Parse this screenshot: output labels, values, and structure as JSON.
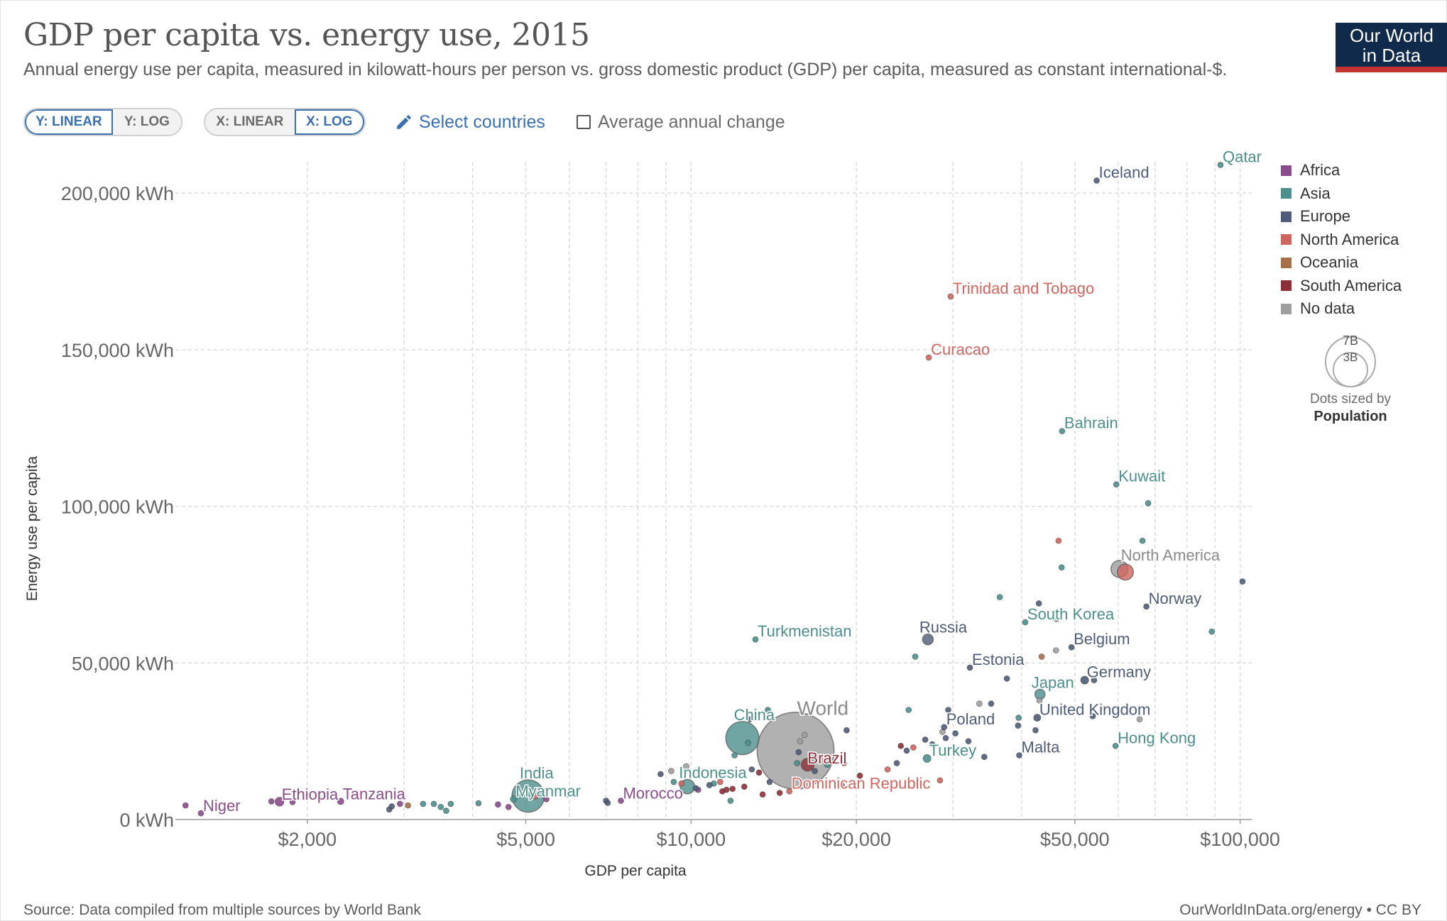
{
  "header": {
    "title": "GDP per capita vs. energy use, 2015",
    "subtitle": "Annual energy use per capita, measured in kilowatt-hours per person vs. gross domestic product (GDP) per capita, measured as constant international-$.",
    "logo_line1": "Our World",
    "logo_line2": "in Data"
  },
  "controls": {
    "y_linear": "Y: LINEAR",
    "y_log": "Y: LOG",
    "x_linear": "X: LINEAR",
    "x_log": "X: LOG",
    "select_countries": "Select countries",
    "average_annual_change": "Average annual change"
  },
  "legend": {
    "items": [
      {
        "label": "Africa",
        "color": "#8a4d8b"
      },
      {
        "label": "Asia",
        "color": "#4d8f8d"
      },
      {
        "label": "Europe",
        "color": "#4e5c77"
      },
      {
        "label": "North America",
        "color": "#d0655f"
      },
      {
        "label": "Oceania",
        "color": "#a7704b"
      },
      {
        "label": "South America",
        "color": "#8e2f38"
      },
      {
        "label": "No data",
        "color": "#9e9e9e"
      }
    ],
    "size_big": "7B",
    "size_small": "3B",
    "size_caption": "Dots sized by",
    "size_variable": "Population"
  },
  "footer": {
    "source": "Source: Data compiled from multiple sources by World Bank",
    "credit": "OurWorldInData.org/energy • CC BY"
  },
  "chart_data": {
    "type": "scatter",
    "title": "GDP per capita vs. energy use, 2015",
    "xlabel": "GDP per capita",
    "ylabel": "Energy use per capita",
    "x_scale": "log",
    "y_scale": "linear",
    "xlim": [
      1150,
      105000
    ],
    "ylim": [
      0,
      210000
    ],
    "x_ticks": [
      2000,
      5000,
      10000,
      20000,
      50000,
      100000
    ],
    "x_tick_labels": [
      "$2,000",
      "$5,000",
      "$10,000",
      "$20,000",
      "$50,000",
      "$100,000"
    ],
    "y_ticks": [
      0,
      50000,
      100000,
      150000,
      200000
    ],
    "y_tick_labels": [
      "0 kWh",
      "50,000 kWh",
      "100,000 kWh",
      "150,000 kWh",
      "200,000 kWh"
    ],
    "grid": true,
    "legend_position": "right",
    "points": [
      {
        "x": 1200,
        "y": 4500,
        "r": "Africa",
        "pop": 6
      },
      {
        "x": 1280,
        "y": 2000,
        "r": "Africa",
        "label": "Niger",
        "pop": 20
      },
      {
        "x": 1720,
        "y": 5800,
        "r": "Africa",
        "pop": 8
      },
      {
        "x": 1780,
        "y": 5700,
        "r": "Africa",
        "label": "Ethiopia",
        "pop": 100
      },
      {
        "x": 1880,
        "y": 5600,
        "r": "Africa",
        "pop": 8
      },
      {
        "x": 2300,
        "y": 5800,
        "r": "Africa",
        "label": "Tanzania",
        "pop": 53
      },
      {
        "x": 2820,
        "y": 3200,
        "r": "Europe",
        "pop": 8
      },
      {
        "x": 2850,
        "y": 4200,
        "r": "Europe",
        "pop": 5
      },
      {
        "x": 2950,
        "y": 5000,
        "r": "Africa",
        "pop": 12
      },
      {
        "x": 3050,
        "y": 4500,
        "r": "Oceania",
        "pop": 8
      },
      {
        "x": 3250,
        "y": 5000,
        "r": "Asia",
        "pop": 10
      },
      {
        "x": 3400,
        "y": 5000,
        "r": "Asia",
        "pop": 5
      },
      {
        "x": 3500,
        "y": 4000,
        "r": "Asia",
        "pop": 8
      },
      {
        "x": 3580,
        "y": 2800,
        "r": "Asia",
        "pop": 12
      },
      {
        "x": 3650,
        "y": 5000,
        "r": "Asia",
        "pop": 8
      },
      {
        "x": 4100,
        "y": 5200,
        "r": "Asia",
        "pop": 10
      },
      {
        "x": 4450,
        "y": 4800,
        "r": "Africa",
        "pop": 8
      },
      {
        "x": 4650,
        "y": 4000,
        "r": "Africa",
        "pop": 8
      },
      {
        "x": 4750,
        "y": 6500,
        "r": "Asia",
        "label": "Myanmar",
        "pop": 53
      },
      {
        "x": 5050,
        "y": 7500,
        "r": "Asia",
        "label": "India",
        "pop": 1310
      },
      {
        "x": 5200,
        "y": 7400,
        "r": "North America",
        "pop": 10
      },
      {
        "x": 5400,
        "y": 9000,
        "r": "Africa",
        "pop": 30
      },
      {
        "x": 5450,
        "y": 6500,
        "r": "Africa",
        "pop": 20
      },
      {
        "x": 5950,
        "y": 8000,
        "r": "No data",
        "pop": 5
      },
      {
        "x": 7000,
        "y": 6000,
        "r": "Europe",
        "pop": 8
      },
      {
        "x": 7050,
        "y": 5300,
        "r": "Europe",
        "pop": 8
      },
      {
        "x": 7450,
        "y": 6000,
        "r": "Africa",
        "label": "Morocco",
        "pop": 35
      },
      {
        "x": 8800,
        "y": 14500,
        "r": "Europe",
        "pop": 8
      },
      {
        "x": 9200,
        "y": 15500,
        "r": "No data",
        "pop": 6
      },
      {
        "x": 9300,
        "y": 12000,
        "r": "Asia",
        "pop": 8
      },
      {
        "x": 9600,
        "y": 11500,
        "r": "North America",
        "pop": 10
      },
      {
        "x": 9800,
        "y": 17000,
        "r": "No data",
        "pop": 6
      },
      {
        "x": 9850,
        "y": 10500,
        "r": "Asia",
        "label": "Indonesia",
        "pop": 260
      },
      {
        "x": 10200,
        "y": 10000,
        "r": "Europe",
        "pop": 8
      },
      {
        "x": 10300,
        "y": 9500,
        "r": "Africa",
        "pop": 10
      },
      {
        "x": 10800,
        "y": 11000,
        "r": "Europe",
        "pop": 6
      },
      {
        "x": 11000,
        "y": 11500,
        "r": "Asia",
        "pop": 8
      },
      {
        "x": 11300,
        "y": 12000,
        "r": "North America",
        "pop": 10
      },
      {
        "x": 11400,
        "y": 9000,
        "r": "South America",
        "pop": 10
      },
      {
        "x": 11600,
        "y": 9500,
        "r": "South America",
        "pop": 10
      },
      {
        "x": 11800,
        "y": 6000,
        "r": "Asia",
        "pop": 8
      },
      {
        "x": 11900,
        "y": 9800,
        "r": "South America",
        "pop": 8
      },
      {
        "x": 12000,
        "y": 20500,
        "r": "Asia",
        "pop": 8
      },
      {
        "x": 12400,
        "y": 26000,
        "r": "Asia",
        "label": "China",
        "pop": 1370
      },
      {
        "x": 12500,
        "y": 10500,
        "r": "South America",
        "pop": 8
      },
      {
        "x": 12700,
        "y": 24500,
        "r": "Asia",
        "pop": 10
      },
      {
        "x": 12800,
        "y": 32000,
        "r": "Europe",
        "pop": 8
      },
      {
        "x": 12900,
        "y": 16000,
        "r": "Europe",
        "pop": 10
      },
      {
        "x": 13100,
        "y": 57500,
        "r": "Asia",
        "label": "Turkmenistan",
        "pop": 6
      },
      {
        "x": 13300,
        "y": 15000,
        "r": "South America",
        "pop": 10
      },
      {
        "x": 13500,
        "y": 8000,
        "r": "South America",
        "pop": 8
      },
      {
        "x": 13800,
        "y": 35000,
        "r": "Asia",
        "pop": 8
      },
      {
        "x": 13900,
        "y": 12000,
        "r": "Europe",
        "pop": 8
      },
      {
        "x": 14500,
        "y": 8500,
        "r": "South America",
        "pop": 8
      },
      {
        "x": 15100,
        "y": 9000,
        "r": "North America",
        "label": "Dominican Republic",
        "pop": 10
      },
      {
        "x": 15500,
        "y": 22000,
        "r": "No data",
        "label": "World",
        "pop": 7400
      },
      {
        "x": 15600,
        "y": 18000,
        "r": "Asia",
        "pop": 8
      },
      {
        "x": 15700,
        "y": 21500,
        "r": "Europe",
        "pop": 8
      },
      {
        "x": 15800,
        "y": 25000,
        "r": "No data",
        "pop": 6
      },
      {
        "x": 16100,
        "y": 27000,
        "r": "No data",
        "pop": 6
      },
      {
        "x": 16300,
        "y": 17500,
        "r": "South America",
        "label": "Brazil",
        "pop": 205
      },
      {
        "x": 16600,
        "y": 19000,
        "r": "No data",
        "pop": 5
      },
      {
        "x": 16800,
        "y": 15500,
        "r": "Europe",
        "pop": 8
      },
      {
        "x": 17700,
        "y": 17500,
        "r": "Asia",
        "pop": 8
      },
      {
        "x": 18800,
        "y": 11000,
        "r": "South America",
        "pop": 8
      },
      {
        "x": 19000,
        "y": 18000,
        "r": "North America",
        "pop": 10
      },
      {
        "x": 19200,
        "y": 28500,
        "r": "Europe",
        "pop": 8
      },
      {
        "x": 20300,
        "y": 14000,
        "r": "South America",
        "pop": 8
      },
      {
        "x": 22800,
        "y": 16000,
        "r": "North America",
        "pop": 8
      },
      {
        "x": 23700,
        "y": 18000,
        "r": "Europe",
        "pop": 8
      },
      {
        "x": 24100,
        "y": 23500,
        "r": "South America",
        "pop": 8
      },
      {
        "x": 24700,
        "y": 22000,
        "r": "Europe",
        "pop": 8
      },
      {
        "x": 24900,
        "y": 35000,
        "r": "Asia",
        "pop": 8
      },
      {
        "x": 25400,
        "y": 23000,
        "r": "North America",
        "pop": 8
      },
      {
        "x": 25600,
        "y": 52000,
        "r": "Asia",
        "pop": 8
      },
      {
        "x": 26700,
        "y": 25500,
        "r": "Europe",
        "pop": 8
      },
      {
        "x": 26900,
        "y": 19500,
        "r": "Asia",
        "label": "Turkey",
        "pop": 78
      },
      {
        "x": 27000,
        "y": 57500,
        "r": "Europe",
        "label": "Russia",
        "pop": 144
      },
      {
        "x": 27100,
        "y": 147500,
        "r": "North America",
        "label": "Curacao",
        "pop": 5
      },
      {
        "x": 27500,
        "y": 24000,
        "r": "Europe",
        "pop": 6
      },
      {
        "x": 28400,
        "y": 12500,
        "r": "North America",
        "pop": 8
      },
      {
        "x": 28700,
        "y": 28000,
        "r": "No data",
        "pop": 38
      },
      {
        "x": 28900,
        "y": 29500,
        "r": "Europe",
        "label": "Poland",
        "pop": 8
      },
      {
        "x": 29100,
        "y": 26000,
        "r": "Europe",
        "pop": 8
      },
      {
        "x": 29400,
        "y": 35000,
        "r": "Europe",
        "pop": 5
      },
      {
        "x": 29700,
        "y": 167000,
        "r": "North America",
        "label": "Trinidad and Tobago",
        "pop": 5
      },
      {
        "x": 30300,
        "y": 27500,
        "r": "Europe",
        "pop": 8
      },
      {
        "x": 32000,
        "y": 25000,
        "r": "Europe",
        "pop": 8
      },
      {
        "x": 32200,
        "y": 48500,
        "r": "Europe",
        "label": "Estonia",
        "pop": 5
      },
      {
        "x": 33500,
        "y": 37000,
        "r": "No data",
        "pop": 6
      },
      {
        "x": 34200,
        "y": 20000,
        "r": "Europe",
        "pop": 8
      },
      {
        "x": 35200,
        "y": 37000,
        "r": "Europe",
        "pop": 8
      },
      {
        "x": 36500,
        "y": 71000,
        "r": "Asia",
        "pop": 8
      },
      {
        "x": 37600,
        "y": 45000,
        "r": "Europe",
        "pop": 8
      },
      {
        "x": 39400,
        "y": 30000,
        "r": "Europe",
        "pop": 8
      },
      {
        "x": 39500,
        "y": 32500,
        "r": "Asia",
        "pop": 8
      },
      {
        "x": 39600,
        "y": 20500,
        "r": "Europe",
        "label": "Malta",
        "pop": 6
      },
      {
        "x": 40600,
        "y": 63000,
        "r": "Asia",
        "label": "South Korea",
        "pop": 8
      },
      {
        "x": 42400,
        "y": 28500,
        "r": "Europe",
        "pop": 8
      },
      {
        "x": 43100,
        "y": 38000,
        "r": "No data",
        "pop": 6
      },
      {
        "x": 43200,
        "y": 40000,
        "r": "Asia",
        "label": "Japan",
        "pop": 127
      },
      {
        "x": 43500,
        "y": 52000,
        "r": "Oceania",
        "pop": 8
      },
      {
        "x": 43000,
        "y": 69000,
        "r": "Europe",
        "pop": 8
      },
      {
        "x": 42700,
        "y": 32500,
        "r": "Europe",
        "label": "United Kingdom",
        "pop": 65
      },
      {
        "x": 46200,
        "y": 54000,
        "r": "No data",
        "pop": 8
      },
      {
        "x": 46300,
        "y": 64000,
        "r": "No data",
        "pop": 6
      },
      {
        "x": 46700,
        "y": 89000,
        "r": "North America",
        "pop": 8
      },
      {
        "x": 47300,
        "y": 80500,
        "r": "Asia",
        "pop": 8
      },
      {
        "x": 47400,
        "y": 124000,
        "r": "Asia",
        "label": "Bahrain",
        "pop": 6
      },
      {
        "x": 49300,
        "y": 55000,
        "r": "Europe",
        "label": "Belgium",
        "pop": 11
      },
      {
        "x": 52100,
        "y": 44500,
        "r": "Europe",
        "label": "Germany",
        "pop": 81
      },
      {
        "x": 53900,
        "y": 33000,
        "r": "Europe",
        "pop": 8
      },
      {
        "x": 54200,
        "y": 44500,
        "r": "Europe",
        "pop": 8
      },
      {
        "x": 54800,
        "y": 204000,
        "r": "Europe",
        "label": "Iceland",
        "pop": 5
      },
      {
        "x": 59300,
        "y": 23500,
        "r": "Asia",
        "label": "Hong Kong",
        "pop": 7
      },
      {
        "x": 59500,
        "y": 107000,
        "r": "Asia",
        "label": "Kuwait",
        "pop": 6
      },
      {
        "x": 60300,
        "y": 80000,
        "r": "No data",
        "label": "North America",
        "pop": 360
      },
      {
        "x": 61800,
        "y": 79000,
        "r": "North America",
        "pop": 320
      },
      {
        "x": 65600,
        "y": 32000,
        "r": "No data",
        "pop": 6
      },
      {
        "x": 66400,
        "y": 89000,
        "r": "Asia",
        "pop": 8
      },
      {
        "x": 67500,
        "y": 68000,
        "r": "Europe",
        "label": "Norway",
        "pop": 5
      },
      {
        "x": 68000,
        "y": 101000,
        "r": "Asia",
        "pop": 8
      },
      {
        "x": 88800,
        "y": 60000,
        "r": "Asia",
        "pop": 8
      },
      {
        "x": 92100,
        "y": 209000,
        "r": "Asia",
        "label": "Qatar",
        "pop": 6
      },
      {
        "x": 101000,
        "y": 76000,
        "r": "Europe",
        "pop": 8
      }
    ]
  }
}
